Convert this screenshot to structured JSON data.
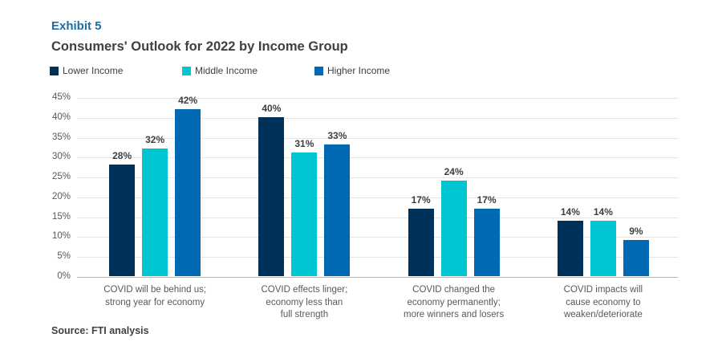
{
  "header": {
    "exhibit": "Exhibit 5",
    "title": "Consumers' Outlook for 2022 by Income Group"
  },
  "source": "Source: FTI analysis",
  "colors": {
    "exhibit_text": "#1c6ea4",
    "title_text": "#404040",
    "lower_income": "#003158",
    "middle_income": "#00c5d3",
    "higher_income": "#0069b4",
    "gridline": "#e5e5e5",
    "axis_line": "#b5b5b5",
    "tick_text": "#595959",
    "value_label_text": "#3f3f3f",
    "source_text": "#404040"
  },
  "chart_data": {
    "type": "bar",
    "title": "Consumers' Outlook for 2022 by Income Group",
    "categories": [
      "COVID will be behind us;\nstrong year for economy",
      "COVID effects linger;\neconomy less than\nfull strength",
      "COVID changed the\neconomy permanently;\nmore winners and losers",
      "COVID impacts will\ncause economy to\nweaken/deteriorate"
    ],
    "series": [
      {
        "name": "Lower Income",
        "color": "#003158",
        "values": [
          28,
          40,
          17,
          14
        ]
      },
      {
        "name": "Middle Income",
        "color": "#00c5d3",
        "values": [
          32,
          31,
          24,
          14
        ]
      },
      {
        "name": "Higher Income",
        "color": "#0069b4",
        "values": [
          42,
          33,
          17,
          9
        ]
      }
    ],
    "value_suffix": "%",
    "xlabel": "",
    "ylabel": "",
    "ylim": [
      0,
      45
    ],
    "ytick_step": 5,
    "ytick_labels": [
      "0%",
      "5%",
      "10%",
      "15%",
      "20%",
      "25%",
      "30%",
      "35%",
      "40%",
      "45%"
    ],
    "grid": true,
    "legend_position": "top-left"
  }
}
